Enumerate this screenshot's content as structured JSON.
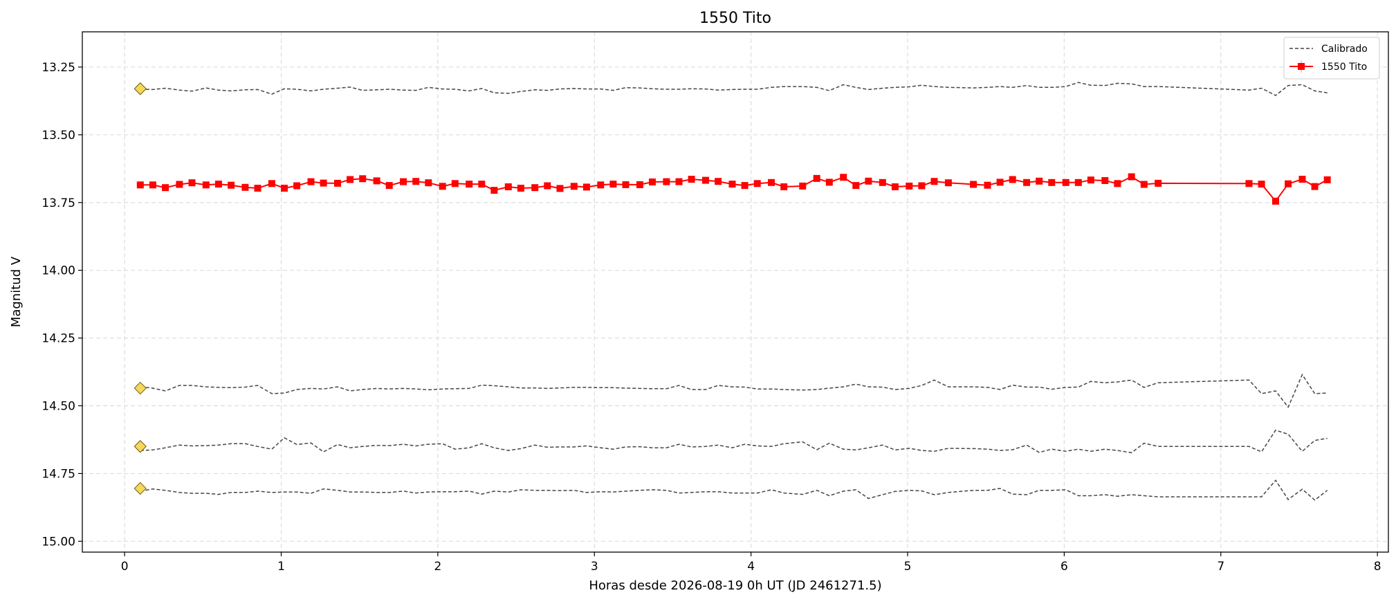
{
  "chart_data": {
    "type": "line",
    "title": "1550 Tito",
    "xlabel": "Horas desde 2026-08-19 0h UT (JD 2461271.5)",
    "ylabel": "Magnitud V",
    "xlim": [
      -0.27,
      8.07
    ],
    "ylim": [
      15.04,
      13.12
    ],
    "y_inverted": true,
    "x_ticks": [
      0,
      1,
      2,
      3,
      4,
      5,
      6,
      7,
      8
    ],
    "x_tick_labels": [
      "0",
      "1",
      "2",
      "3",
      "4",
      "5",
      "6",
      "7",
      "8"
    ],
    "y_ticks": [
      13.25,
      13.5,
      13.75,
      14.0,
      14.25,
      14.5,
      14.75,
      15.0
    ],
    "y_tick_labels": [
      "13.25",
      "13.50",
      "13.75",
      "14.00",
      "14.25",
      "14.50",
      "14.75",
      "15.00"
    ],
    "grid": true,
    "legend_position": "top-right",
    "legend": [
      {
        "label": "Calibrado",
        "style": "dashed",
        "color": "#444444"
      },
      {
        "label": "1550 Tito",
        "style": "solid-square-marker",
        "color": "#ff0000"
      }
    ],
    "target": {
      "name": "1550 Tito",
      "color": "#ff0000",
      "x": [
        0.1,
        0.18,
        0.26,
        0.35,
        0.43,
        0.52,
        0.6,
        0.68,
        0.77,
        0.85,
        0.94,
        1.02,
        1.1,
        1.19,
        1.27,
        1.36,
        1.44,
        1.52,
        1.61,
        1.69,
        1.78,
        1.86,
        1.94,
        2.03,
        2.11,
        2.2,
        2.28,
        2.36,
        2.45,
        2.53,
        2.62,
        2.7,
        2.78,
        2.87,
        2.95,
        3.04,
        3.12,
        3.2,
        3.29,
        3.37,
        3.46,
        3.54,
        3.62,
        3.71,
        3.79,
        3.88,
        3.96,
        4.04,
        4.13,
        4.21,
        4.33,
        4.42,
        4.5,
        4.59,
        4.67,
        4.75,
        4.84,
        4.92,
        5.01,
        5.09,
        5.17,
        5.26,
        5.42,
        5.51,
        5.59,
        5.67,
        5.76,
        5.84,
        5.92,
        6.01,
        6.09,
        6.17,
        6.26,
        6.34,
        6.43,
        6.51,
        6.6,
        7.18,
        7.26,
        7.35,
        7.43,
        7.52,
        7.6,
        7.68
      ],
      "y": [
        13.685,
        13.685,
        13.695,
        13.683,
        13.677,
        13.685,
        13.682,
        13.686,
        13.694,
        13.697,
        13.68,
        13.697,
        13.688,
        13.673,
        13.678,
        13.679,
        13.665,
        13.662,
        13.67,
        13.687,
        13.673,
        13.672,
        13.677,
        13.69,
        13.68,
        13.682,
        13.682,
        13.705,
        13.692,
        13.697,
        13.695,
        13.688,
        13.698,
        13.69,
        13.693,
        13.685,
        13.682,
        13.684,
        13.684,
        13.674,
        13.673,
        13.673,
        13.664,
        13.668,
        13.672,
        13.682,
        13.687,
        13.68,
        13.676,
        13.692,
        13.689,
        13.661,
        13.675,
        13.657,
        13.687,
        13.671,
        13.676,
        13.692,
        13.689,
        13.688,
        13.672,
        13.677,
        13.683,
        13.686,
        13.675,
        13.665,
        13.676,
        13.671,
        13.676,
        13.676,
        13.676,
        13.667,
        13.669,
        13.68,
        13.655,
        13.683,
        13.679,
        13.68,
        13.682,
        13.745,
        13.681,
        13.664,
        13.691,
        13.666
      ]
    },
    "comparison_x": [
      0.1,
      0.18,
      0.26,
      0.35,
      0.43,
      0.52,
      0.6,
      0.68,
      0.77,
      0.85,
      0.94,
      1.02,
      1.1,
      1.19,
      1.27,
      1.36,
      1.44,
      1.52,
      1.61,
      1.69,
      1.78,
      1.86,
      1.94,
      2.03,
      2.11,
      2.2,
      2.28,
      2.36,
      2.45,
      2.53,
      2.62,
      2.7,
      2.78,
      2.87,
      2.95,
      3.04,
      3.12,
      3.2,
      3.29,
      3.37,
      3.46,
      3.54,
      3.62,
      3.71,
      3.79,
      3.88,
      3.96,
      4.04,
      4.13,
      4.21,
      4.33,
      4.42,
      4.5,
      4.59,
      4.67,
      4.75,
      4.84,
      4.92,
      5.01,
      5.09,
      5.17,
      5.26,
      5.42,
      5.51,
      5.59,
      5.67,
      5.76,
      5.84,
      5.92,
      6.01,
      6.09,
      6.17,
      6.26,
      6.34,
      6.43,
      6.51,
      6.6,
      7.18,
      7.26,
      7.35,
      7.43,
      7.52,
      7.6,
      7.68
    ],
    "comparison_series": [
      {
        "y": [
          13.332,
          13.333,
          13.328,
          13.335,
          13.339,
          13.327,
          13.335,
          13.338,
          13.334,
          13.333,
          13.35,
          13.33,
          13.332,
          13.338,
          13.332,
          13.328,
          13.324,
          13.336,
          13.334,
          13.332,
          13.335,
          13.336,
          13.325,
          13.331,
          13.332,
          13.338,
          13.329,
          13.345,
          13.347,
          13.34,
          13.334,
          13.336,
          13.331,
          13.329,
          13.331,
          13.331,
          13.336,
          13.326,
          13.327,
          13.33,
          13.332,
          13.332,
          13.33,
          13.331,
          13.335,
          13.333,
          13.332,
          13.332,
          13.325,
          13.322,
          13.322,
          13.325,
          13.337,
          13.315,
          13.325,
          13.333,
          13.328,
          13.325,
          13.323,
          13.317,
          13.322,
          13.325,
          13.327,
          13.325,
          13.322,
          13.325,
          13.318,
          13.325,
          13.325,
          13.322,
          13.307,
          13.317,
          13.318,
          13.31,
          13.312,
          13.322,
          13.322,
          13.335,
          13.328,
          13.355,
          13.318,
          13.315,
          13.338,
          13.345
        ]
      },
      {
        "y": [
          14.43,
          14.435,
          14.445,
          14.425,
          14.425,
          14.43,
          14.432,
          14.433,
          14.431,
          14.425,
          14.455,
          14.453,
          14.44,
          14.436,
          14.438,
          14.43,
          14.445,
          14.44,
          14.436,
          14.438,
          14.436,
          14.438,
          14.441,
          14.438,
          14.437,
          14.436,
          14.424,
          14.426,
          14.43,
          14.434,
          14.434,
          14.436,
          14.434,
          14.432,
          14.432,
          14.433,
          14.433,
          14.435,
          14.436,
          14.437,
          14.437,
          14.425,
          14.44,
          14.44,
          14.425,
          14.43,
          14.431,
          14.438,
          14.438,
          14.44,
          14.442,
          14.44,
          14.435,
          14.43,
          14.42,
          14.43,
          14.431,
          14.44,
          14.436,
          14.425,
          14.405,
          14.43,
          14.43,
          14.432,
          14.44,
          14.424,
          14.431,
          14.431,
          14.439,
          14.432,
          14.431,
          14.41,
          14.415,
          14.412,
          14.405,
          14.432,
          14.415,
          14.405,
          14.455,
          14.445,
          14.505,
          14.385,
          14.455,
          14.453
        ]
      },
      {
        "y": [
          14.665,
          14.663,
          14.655,
          14.645,
          14.648,
          14.647,
          14.645,
          14.64,
          14.64,
          14.65,
          14.66,
          14.618,
          14.643,
          14.637,
          14.67,
          14.643,
          14.655,
          14.65,
          14.646,
          14.647,
          14.642,
          14.648,
          14.642,
          14.64,
          14.66,
          14.655,
          14.64,
          14.655,
          14.665,
          14.658,
          14.645,
          14.653,
          14.652,
          14.652,
          14.648,
          14.655,
          14.66,
          14.652,
          14.651,
          14.655,
          14.655,
          14.642,
          14.652,
          14.65,
          14.645,
          14.655,
          14.642,
          14.648,
          14.65,
          14.64,
          14.633,
          14.662,
          14.638,
          14.66,
          14.663,
          14.655,
          14.645,
          14.663,
          14.657,
          14.665,
          14.668,
          14.657,
          14.658,
          14.66,
          14.665,
          14.662,
          14.645,
          14.672,
          14.66,
          14.668,
          14.66,
          14.668,
          14.66,
          14.665,
          14.673,
          14.638,
          14.65,
          14.65,
          14.67,
          14.59,
          14.605,
          14.668,
          14.628,
          14.62
        ]
      },
      {
        "y": [
          14.815,
          14.807,
          14.812,
          14.82,
          14.823,
          14.823,
          14.827,
          14.82,
          14.82,
          14.815,
          14.82,
          14.818,
          14.818,
          14.823,
          14.807,
          14.812,
          14.818,
          14.818,
          14.82,
          14.82,
          14.815,
          14.822,
          14.818,
          14.817,
          14.817,
          14.815,
          14.826,
          14.815,
          14.818,
          14.81,
          14.812,
          14.812,
          14.813,
          14.812,
          14.82,
          14.817,
          14.818,
          14.815,
          14.812,
          14.81,
          14.812,
          14.822,
          14.82,
          14.817,
          14.817,
          14.822,
          14.822,
          14.822,
          14.81,
          14.822,
          14.827,
          14.812,
          14.832,
          14.815,
          14.81,
          14.842,
          14.828,
          14.816,
          14.812,
          14.814,
          14.828,
          14.82,
          14.812,
          14.812,
          14.805,
          14.826,
          14.828,
          14.812,
          14.812,
          14.81,
          14.832,
          14.832,
          14.828,
          14.834,
          14.828,
          14.832,
          14.836,
          14.836,
          14.836,
          14.775,
          14.846,
          14.808,
          14.848,
          14.812
        ]
      }
    ],
    "comparison_color": "#444444",
    "reference_markers": {
      "color": "#f5d85a",
      "x": 0.1,
      "y": [
        13.33,
        14.435,
        14.65,
        14.805
      ]
    }
  }
}
